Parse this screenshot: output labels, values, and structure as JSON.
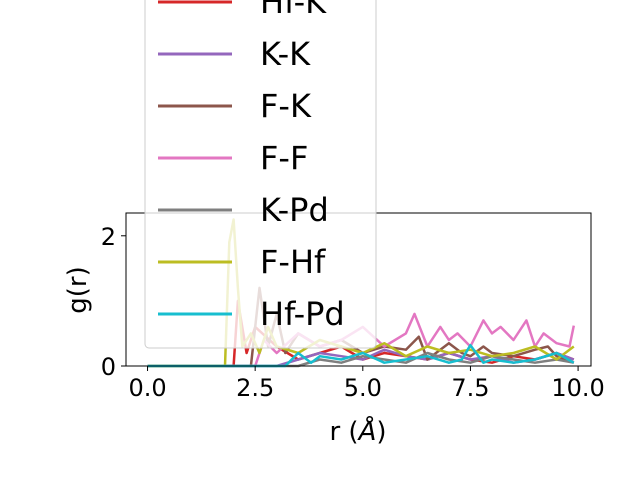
{
  "chart_data": {
    "type": "line",
    "title": "",
    "xlabel": "r (",
    "xlabel_unit": "Å",
    "xlabel_close": ")",
    "ylabel": "g(r)",
    "xlim": [
      -0.5,
      10.3
    ],
    "ylim": [
      0,
      2.35
    ],
    "x_ticks": [
      0.0,
      2.5,
      5.0,
      7.5,
      10.0
    ],
    "x_tick_labels": [
      "0.0",
      "2.5",
      "5.0",
      "7.5",
      "10.0"
    ],
    "y_ticks": [
      0,
      2
    ],
    "y_tick_labels": [
      "0",
      "2"
    ],
    "grid": false,
    "legend_position": "upper-left (overflowing above axes)",
    "series": [
      {
        "name": "Hf-K",
        "color": "#d62728",
        "x": [
          0,
          1.8,
          2.0,
          2.1,
          2.3,
          2.5,
          3.0,
          3.5,
          4.0,
          4.5,
          5.0,
          5.5,
          6.0,
          6.5,
          7.0,
          7.5,
          8.0,
          8.5,
          9.0,
          9.5,
          9.9
        ],
        "y": [
          0,
          0,
          0,
          1.0,
          0.2,
          0.6,
          0.3,
          0.1,
          0.2,
          0.3,
          0.1,
          0.2,
          0.15,
          0.1,
          0.2,
          0.1,
          0.05,
          0.15,
          0.1,
          0.2,
          0.1
        ]
      },
      {
        "name": "K-K",
        "color": "#9467bd",
        "x": [
          0,
          3.0,
          3.5,
          4.0,
          4.5,
          5.0,
          5.5,
          6.0,
          6.5,
          7.0,
          7.5,
          8.0,
          8.5,
          9.0,
          9.5,
          9.9
        ],
        "y": [
          0,
          0,
          0.1,
          0.2,
          0.15,
          0.1,
          0.25,
          0.15,
          0.1,
          0.2,
          0.1,
          0.15,
          0.05,
          0.1,
          0.2,
          0.1
        ]
      },
      {
        "name": "F-K",
        "color": "#8c564b",
        "x": [
          0,
          2.4,
          2.6,
          2.8,
          3.0,
          3.2,
          3.5,
          4.0,
          4.5,
          5.0,
          5.5,
          6.0,
          6.3,
          6.5,
          7.0,
          7.3,
          7.5,
          7.8,
          8.0,
          8.5,
          9.0,
          9.3,
          9.5,
          9.9
        ],
        "y": [
          0,
          0,
          1.2,
          0.3,
          0.8,
          0.2,
          0.5,
          0.3,
          0.4,
          0.2,
          0.3,
          0.25,
          0.45,
          0.1,
          0.35,
          0.2,
          0.15,
          0.3,
          0.2,
          0.15,
          0.25,
          0.3,
          0.15,
          0.05
        ]
      },
      {
        "name": "F-F",
        "color": "#e377c2",
        "x": [
          0,
          2.5,
          2.7,
          3.0,
          3.5,
          4.0,
          4.5,
          5.0,
          5.5,
          6.0,
          6.2,
          6.5,
          6.8,
          7.0,
          7.2,
          7.5,
          7.8,
          8.0,
          8.2,
          8.5,
          8.8,
          9.0,
          9.2,
          9.5,
          9.8,
          9.9
        ],
        "y": [
          0,
          0,
          0.4,
          0.2,
          0.5,
          0.3,
          0.4,
          0.6,
          0.3,
          0.5,
          0.8,
          0.3,
          0.6,
          0.4,
          0.5,
          0.3,
          0.7,
          0.5,
          0.6,
          0.4,
          0.7,
          0.3,
          0.5,
          0.35,
          0.3,
          0.62
        ]
      },
      {
        "name": "K-Pd",
        "color": "#7f7f7f",
        "x": [
          0,
          3.5,
          4.0,
          4.5,
          5.0,
          5.5,
          6.0,
          6.5,
          7.0,
          7.5,
          8.0,
          8.5,
          9.0,
          9.5,
          9.9
        ],
        "y": [
          0,
          0,
          0.1,
          0.05,
          0.15,
          0.1,
          0.05,
          0.2,
          0.1,
          0.05,
          0.15,
          0.1,
          0.05,
          0.1,
          0.05
        ]
      },
      {
        "name": "F-Hf",
        "color": "#bcbd22",
        "x": [
          0,
          1.8,
          1.9,
          2.0,
          2.1,
          2.2,
          2.4,
          2.6,
          2.8,
          3.0,
          3.5,
          4.0,
          4.5,
          5.0,
          5.5,
          6.0,
          6.5,
          7.0,
          7.5,
          8.0,
          8.5,
          9.0,
          9.5,
          9.9
        ],
        "y": [
          0,
          0,
          1.9,
          2.25,
          1.2,
          0.3,
          0.5,
          0.2,
          0.6,
          0.3,
          0.2,
          0.4,
          0.3,
          0.2,
          0.35,
          0.15,
          0.3,
          0.2,
          0.25,
          0.15,
          0.2,
          0.3,
          0.1,
          0.3
        ]
      },
      {
        "name": "Hf-Pd",
        "color": "#17becf",
        "x": [
          0,
          3.2,
          3.5,
          3.8,
          4.0,
          4.5,
          5.0,
          5.5,
          6.0,
          6.5,
          7.0,
          7.3,
          7.5,
          7.8,
          8.0,
          8.5,
          9.0,
          9.5,
          9.9
        ],
        "y": [
          0,
          0,
          0.2,
          0.05,
          0.15,
          0.1,
          0.2,
          0.05,
          0.1,
          0.15,
          0.05,
          0.1,
          0.32,
          0.05,
          0.1,
          0.05,
          0.1,
          0.2,
          0.05
        ]
      }
    ]
  }
}
